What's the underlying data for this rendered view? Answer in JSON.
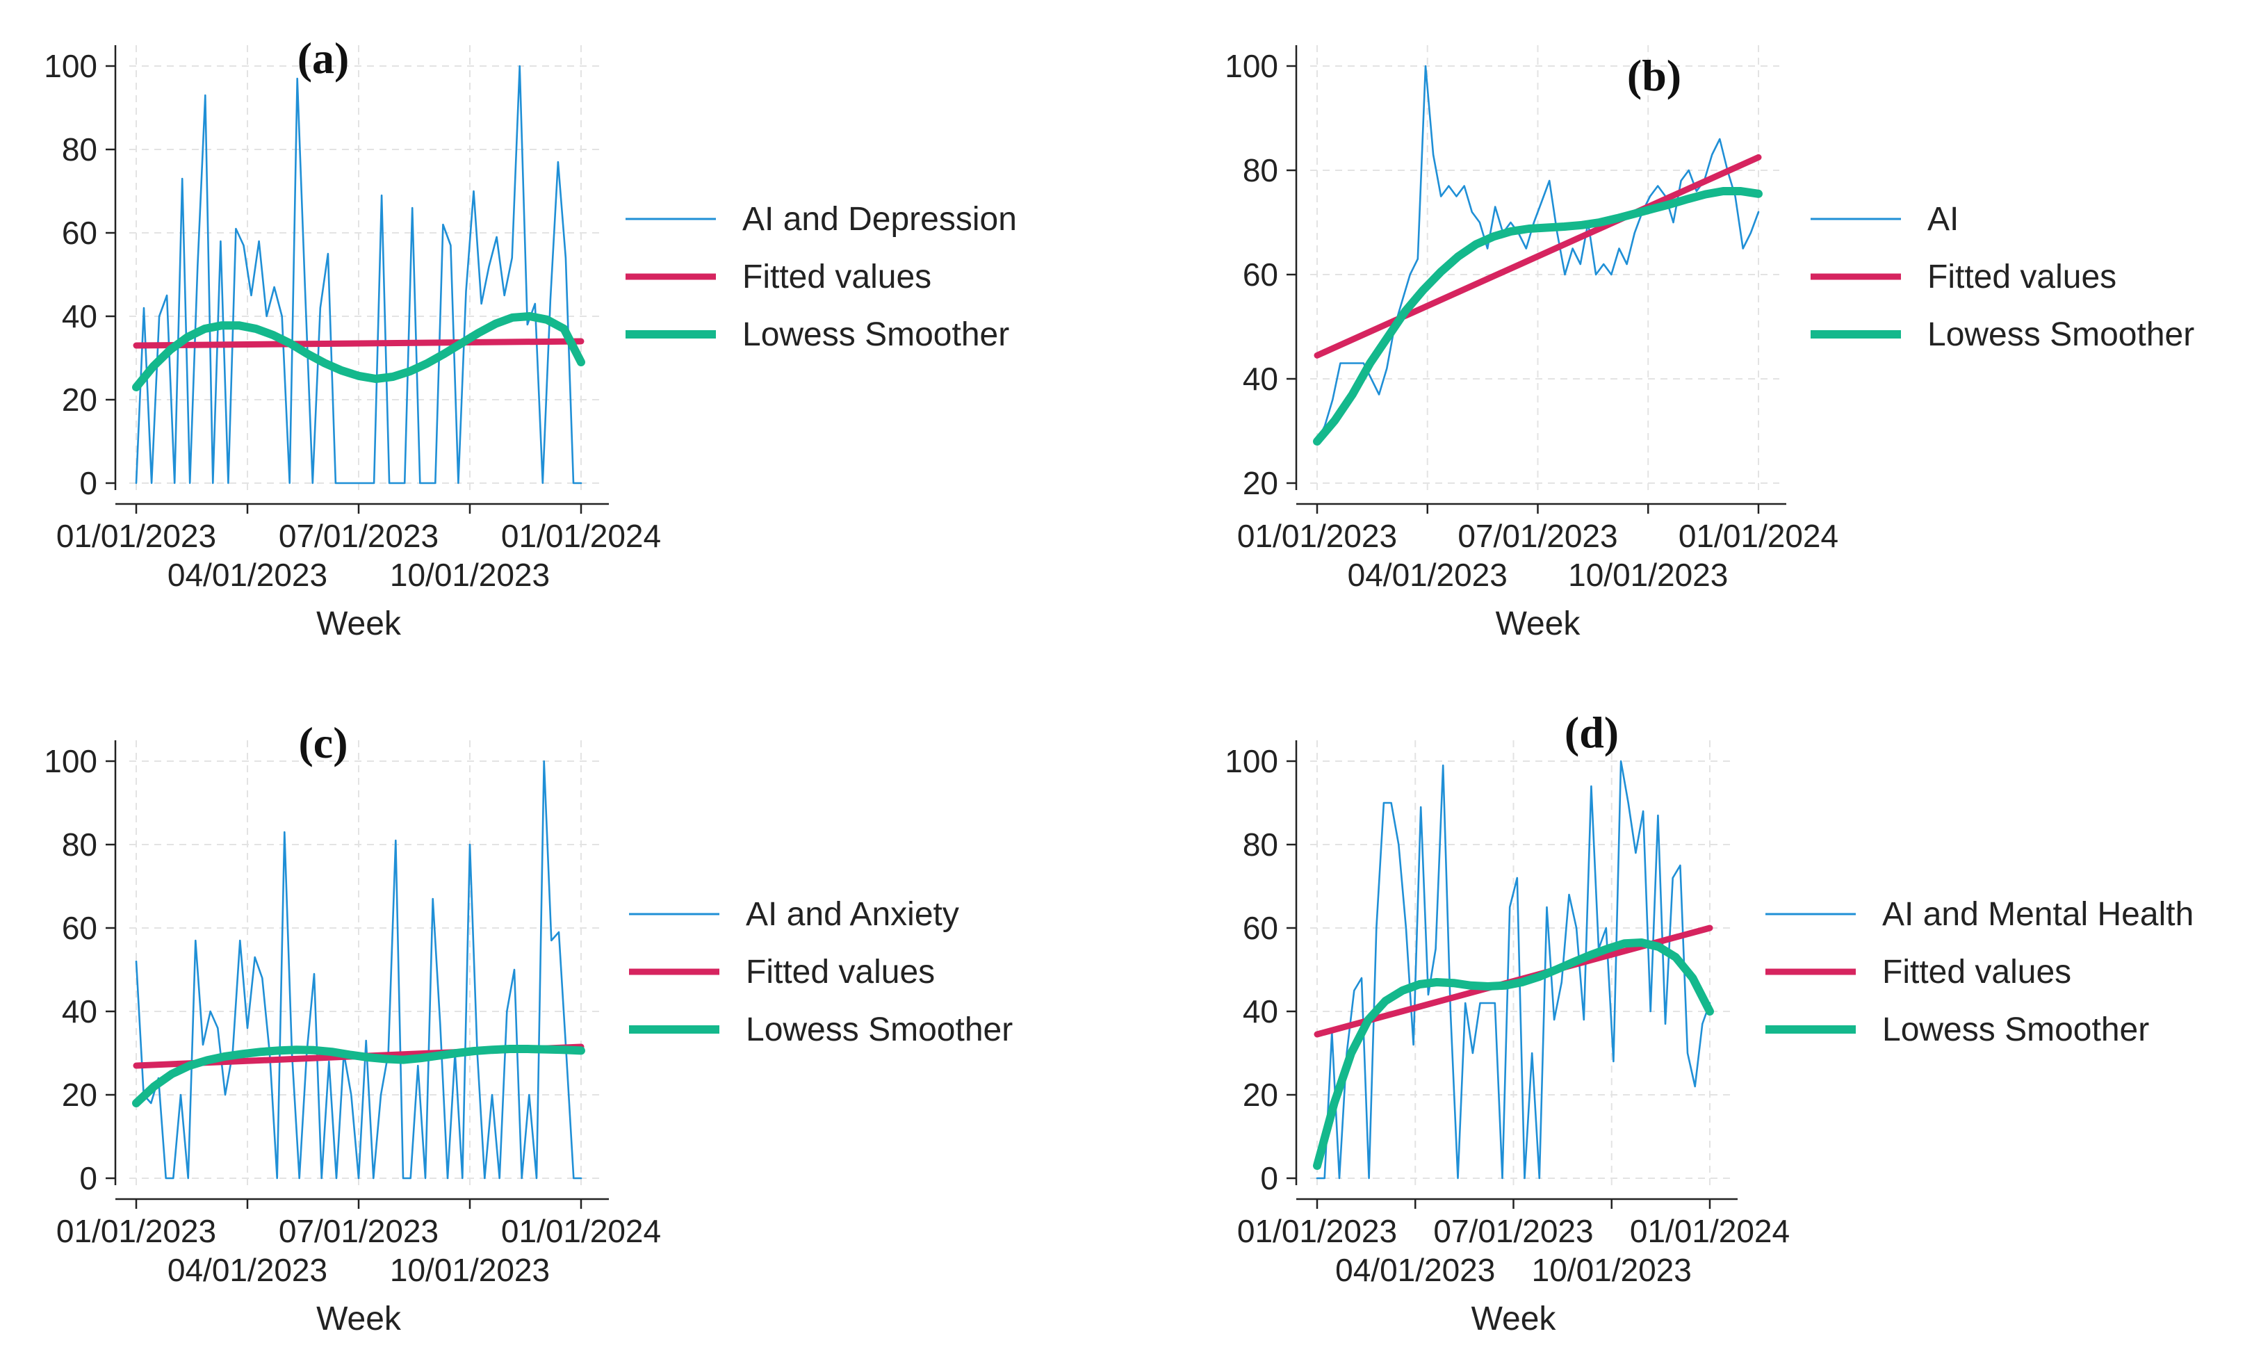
{
  "figure": {
    "colors": {
      "observed": "#1f8fd6",
      "fitted": "#d6245f",
      "lowess": "#14b88c",
      "grid": "#e3e3e3",
      "axis": "#222222",
      "text": "#222222"
    }
  },
  "chart_data": [
    {
      "type": "line",
      "panel_label": "(a)",
      "xlabel": "Week",
      "ylabel": "",
      "ylim": [
        0,
        100
      ],
      "yticks": [
        0,
        20,
        40,
        60,
        80,
        100
      ],
      "xticks": [
        "01/01/2023",
        "04/01/2023",
        "07/01/2023",
        "10/01/2023",
        "01/01/2024"
      ],
      "legend": [
        "AI and Depression",
        "Fitted values",
        "Lowess Smoother"
      ],
      "legend_position": "right",
      "series": [
        {
          "name": "AI and Depression",
          "kind": "observed",
          "values": [
            0,
            42,
            0,
            40,
            45,
            0,
            73,
            0,
            52,
            93,
            0,
            58,
            0,
            61,
            57,
            45,
            58,
            40,
            47,
            40,
            0,
            97,
            47,
            0,
            42,
            55,
            0,
            0,
            0,
            0,
            0,
            0,
            69,
            0,
            0,
            0,
            66,
            0,
            0,
            0,
            62,
            57,
            0,
            46,
            70,
            43,
            52,
            59,
            45,
            54,
            100,
            38,
            43,
            0,
            44,
            77,
            54,
            0,
            0
          ]
        },
        {
          "name": "Fitted values",
          "kind": "fitted",
          "values": [
            33.0,
            34.0
          ]
        },
        {
          "name": "Lowess Smoother",
          "kind": "lowess",
          "values": [
            23,
            28,
            32,
            35,
            37,
            37.8,
            37.8,
            37,
            35.5,
            33.5,
            31,
            28.8,
            27,
            25.7,
            25,
            25.5,
            26.8,
            28.7,
            31,
            33.5,
            36,
            38.2,
            39.7,
            40,
            39.2,
            37,
            29
          ]
        }
      ]
    },
    {
      "type": "line",
      "panel_label": "(b)",
      "xlabel": "Week",
      "ylabel": "",
      "ylim": [
        20,
        100
      ],
      "yticks": [
        20,
        40,
        60,
        80,
        100
      ],
      "xticks": [
        "01/01/2023",
        "04/01/2023",
        "07/01/2023",
        "10/01/2023",
        "01/01/2024"
      ],
      "legend": [
        "AI",
        "Fitted values",
        "Lowess Smoother"
      ],
      "legend_position": "right",
      "series": [
        {
          "name": "AI",
          "kind": "observed",
          "values": [
            28,
            31,
            36,
            43,
            43,
            43,
            43,
            40,
            37,
            42,
            50,
            55,
            60,
            63,
            100,
            83,
            75,
            77,
            75,
            77,
            72,
            70,
            65,
            73,
            68,
            70,
            68,
            65,
            70,
            74,
            78,
            68,
            60,
            65,
            62,
            70,
            60,
            62,
            60,
            65,
            62,
            68,
            72,
            75,
            77,
            75,
            70,
            78,
            80,
            76,
            78,
            83,
            86,
            80,
            75,
            65,
            68,
            72
          ]
        },
        {
          "name": "Fitted values",
          "kind": "fitted",
          "values": [
            44.5,
            82.5
          ]
        },
        {
          "name": "Lowess Smoother",
          "kind": "lowess",
          "values": [
            28,
            32,
            37,
            43,
            48,
            53,
            57,
            60.5,
            63.5,
            65.8,
            67.3,
            68.3,
            68.8,
            69,
            69.2,
            69.5,
            70,
            70.8,
            71.7,
            72.6,
            73.5,
            74.5,
            75.4,
            76,
            76,
            75.5
          ]
        }
      ]
    },
    {
      "type": "line",
      "panel_label": "(c)",
      "xlabel": "Week",
      "ylabel": "",
      "ylim": [
        0,
        100
      ],
      "yticks": [
        0,
        20,
        40,
        60,
        80,
        100
      ],
      "xticks": [
        "01/01/2023",
        "04/01/2023",
        "07/01/2023",
        "10/01/2023",
        "01/01/2024"
      ],
      "legend": [
        "AI and Anxiety",
        "Fitted values",
        "Lowess Smoother"
      ],
      "legend_position": "right",
      "series": [
        {
          "name": "AI and Anxiety",
          "kind": "observed",
          "values": [
            52,
            20,
            18,
            24,
            0,
            0,
            20,
            0,
            57,
            32,
            40,
            36,
            20,
            30,
            57,
            36,
            53,
            48,
            30,
            0,
            83,
            30,
            0,
            30,
            49,
            0,
            28,
            0,
            30,
            20,
            0,
            33,
            0,
            20,
            30,
            81,
            0,
            0,
            27,
            0,
            67,
            37,
            0,
            30,
            0,
            80,
            30,
            0,
            20,
            0,
            40,
            50,
            0,
            20,
            0,
            100,
            57,
            59,
            30,
            0,
            0
          ]
        },
        {
          "name": "Fitted values",
          "kind": "fitted",
          "values": [
            27.0,
            31.5
          ]
        },
        {
          "name": "Lowess Smoother",
          "kind": "lowess",
          "values": [
            18,
            22,
            25,
            27,
            28.3,
            29.2,
            29.8,
            30.3,
            30.6,
            30.8,
            30.7,
            30.3,
            29.6,
            29,
            28.6,
            28.4,
            28.8,
            29.4,
            30,
            30.5,
            30.8,
            31,
            31,
            30.9,
            30.8,
            30.6
          ]
        }
      ]
    },
    {
      "type": "line",
      "panel_label": "(d)",
      "xlabel": "Week",
      "ylabel": "",
      "ylim": [
        0,
        100
      ],
      "yticks": [
        0,
        20,
        40,
        60,
        80,
        100
      ],
      "xticks": [
        "01/01/2023",
        "04/01/2023",
        "07/01/2023",
        "10/01/2023",
        "01/01/2024"
      ],
      "legend": [
        "AI and Mental Health",
        "Fitted values",
        "Lowess Smoother"
      ],
      "legend_position": "right",
      "series": [
        {
          "name": "AI and Mental Health",
          "kind": "observed",
          "values": [
            0,
            0,
            35,
            0,
            30,
            45,
            48,
            0,
            60,
            90,
            90,
            80,
            60,
            32,
            89,
            44,
            55,
            99,
            40,
            0,
            42,
            30,
            42,
            42,
            42,
            0,
            65,
            72,
            0,
            30,
            0,
            65,
            38,
            47,
            68,
            60,
            38,
            94,
            55,
            60,
            28,
            100,
            90,
            78,
            88,
            40,
            87,
            37,
            72,
            75,
            30,
            22,
            37,
            42
          ]
        },
        {
          "name": "Fitted values",
          "kind": "fitted",
          "values": [
            34.5,
            60.0
          ]
        },
        {
          "name": "Lowess Smoother",
          "kind": "lowess",
          "values": [
            3,
            18,
            30,
            38,
            42.5,
            45,
            46.5,
            47,
            46.8,
            46.2,
            46,
            46.2,
            47,
            48.3,
            50,
            51.8,
            53.5,
            55,
            56.3,
            56.5,
            55.5,
            53,
            48,
            40
          ]
        }
      ]
    }
  ]
}
